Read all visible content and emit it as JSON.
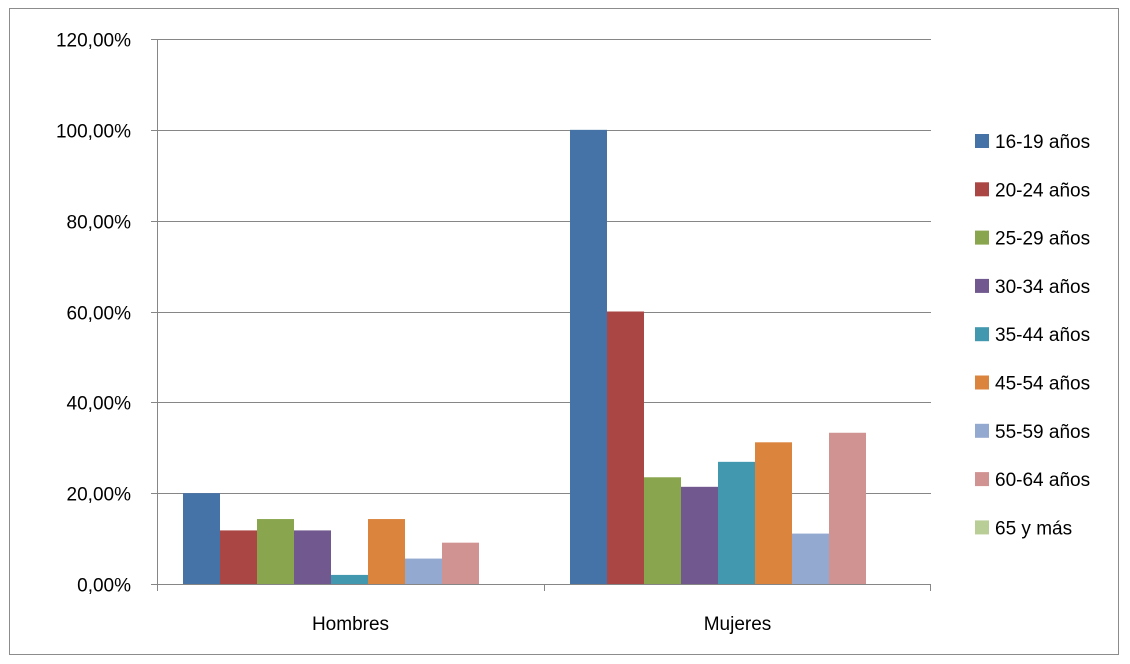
{
  "chart_data": {
    "type": "bar",
    "categories": [
      "Hombres",
      "Mujeres"
    ],
    "y_tick_labels": [
      "0,00%",
      "20,00%",
      "40,00%",
      "60,00%",
      "80,00%",
      "100,00%",
      "120,00%"
    ],
    "ylim": [
      0,
      120
    ],
    "grid": true,
    "legend_position": "right",
    "series": [
      {
        "name": "16-19 años",
        "color": "#4572a7",
        "values": [
          20.0,
          100.0
        ]
      },
      {
        "name": "20-24 años",
        "color": "#aa4643",
        "values": [
          11.8,
          60.0
        ]
      },
      {
        "name": "25-29 años",
        "color": "#89a54e",
        "values": [
          14.3,
          23.5
        ]
      },
      {
        "name": "30-34 años",
        "color": "#71588f",
        "values": [
          11.8,
          21.4
        ]
      },
      {
        "name": "35-44 años",
        "color": "#4198af",
        "values": [
          2.0,
          26.9
        ]
      },
      {
        "name": "45-54 años",
        "color": "#db843d",
        "values": [
          14.3,
          31.2
        ]
      },
      {
        "name": "55-59 años",
        "color": "#93a9cf",
        "values": [
          5.6,
          11.1
        ]
      },
      {
        "name": "60-64 años",
        "color": "#d19392",
        "values": [
          9.1,
          33.3
        ]
      },
      {
        "name": "65 y más",
        "color": "#b9cd96",
        "values": [
          0,
          0
        ]
      }
    ]
  }
}
